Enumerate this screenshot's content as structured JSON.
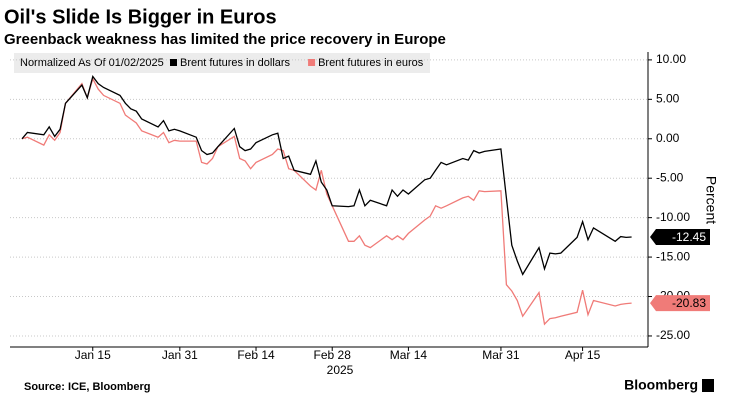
{
  "chart_data": {
    "type": "line",
    "title": "Oil's Slide Is Bigger in Euros",
    "subtitle": "Greenback weakness has limited the price recovery in Europe",
    "legend_title": "Normalized As Of 01/02/2025",
    "ylabel": "Percent",
    "xlabel": "2025",
    "source": "Source: ICE, Bloomberg",
    "brand": "Bloomberg",
    "x": [
      "2025-01-02",
      "2025-01-03",
      "2025-01-06",
      "2025-01-07",
      "2025-01-08",
      "2025-01-09",
      "2025-01-10",
      "2025-01-13",
      "2025-01-14",
      "2025-01-15",
      "2025-01-16",
      "2025-01-17",
      "2025-01-20",
      "2025-01-21",
      "2025-01-22",
      "2025-01-23",
      "2025-01-24",
      "2025-01-27",
      "2025-01-28",
      "2025-01-29",
      "2025-01-30",
      "2025-01-31",
      "2025-02-03",
      "2025-02-04",
      "2025-02-05",
      "2025-02-06",
      "2025-02-07",
      "2025-02-10",
      "2025-02-11",
      "2025-02-12",
      "2025-02-13",
      "2025-02-14",
      "2025-02-17",
      "2025-02-18",
      "2025-02-19",
      "2025-02-20",
      "2025-02-21",
      "2025-02-24",
      "2025-02-25",
      "2025-02-26",
      "2025-02-27",
      "2025-02-28",
      "2025-03-03",
      "2025-03-04",
      "2025-03-05",
      "2025-03-06",
      "2025-03-07",
      "2025-03-10",
      "2025-03-11",
      "2025-03-12",
      "2025-03-13",
      "2025-03-14",
      "2025-03-17",
      "2025-03-18",
      "2025-03-19",
      "2025-03-20",
      "2025-03-21",
      "2025-03-24",
      "2025-03-25",
      "2025-03-26",
      "2025-03-27",
      "2025-03-28",
      "2025-03-31",
      "2025-04-01",
      "2025-04-02",
      "2025-04-03",
      "2025-04-04",
      "2025-04-07",
      "2025-04-08",
      "2025-04-09",
      "2025-04-10",
      "2025-04-11",
      "2025-04-14",
      "2025-04-15",
      "2025-04-16",
      "2025-04-17",
      "2025-04-21",
      "2025-04-22",
      "2025-04-23",
      "2025-04-24"
    ],
    "series": [
      {
        "name": "Brent futures in dollars",
        "color": "#000000",
        "values": [
          0,
          0.8,
          0.5,
          1.5,
          0.3,
          1.2,
          4.5,
          6.8,
          5.2,
          7.9,
          7.0,
          6.5,
          5.5,
          4.5,
          3.8,
          3.5,
          2.5,
          1.5,
          2.3,
          1.0,
          1.2,
          1.0,
          0.2,
          -1.5,
          -2.0,
          -1.8,
          -1.0,
          1.3,
          -1.0,
          -1.5,
          -1.3,
          -0.5,
          0.5,
          0.7,
          -2.5,
          -2.2,
          -4.0,
          -4.5,
          -2.8,
          -5.5,
          -6.5,
          -8.5,
          -8.6,
          -8.5,
          -6.5,
          -8.5,
          -7.8,
          -8.5,
          -6.5,
          -7.3,
          -6.5,
          -7.0,
          -5.2,
          -5.0,
          -4.0,
          -3.0,
          -3.3,
          -2.5,
          -2.7,
          -1.5,
          -1.8,
          -1.6,
          -1.3,
          -7.5,
          -13.5,
          -15.5,
          -17.2,
          -13.8,
          -16.5,
          -14.5,
          -14.6,
          -14.5,
          -12.5,
          -10.5,
          -12.8,
          -11.3,
          -13.0,
          -12.4,
          -12.5,
          -12.45
        ]
      },
      {
        "name": "Brent futures in euros",
        "color": "#f07b78",
        "values": [
          0,
          0.2,
          -0.8,
          0.5,
          -0.2,
          0.8,
          4.5,
          7.0,
          5.2,
          7.6,
          6.3,
          5.5,
          4.5,
          3.0,
          2.5,
          2.0,
          1.0,
          0.2,
          0.8,
          -0.5,
          -0.2,
          -0.3,
          -0.3,
          -3.0,
          -3.2,
          -2.5,
          -1.0,
          0.3,
          -2.5,
          -2.8,
          -3.8,
          -3.0,
          -2.0,
          -1.3,
          -1.5,
          -3.8,
          -4.0,
          -6.0,
          -6.5,
          -4.0,
          -7.0,
          -8.5,
          -13.0,
          -13.0,
          -12.3,
          -13.5,
          -13.8,
          -12.3,
          -12.8,
          -12.3,
          -12.8,
          -12.0,
          -10.3,
          -9.8,
          -8.5,
          -8.8,
          -8.5,
          -7.5,
          -7.3,
          -7.8,
          -6.6,
          -6.7,
          -6.6,
          -18.5,
          -19.3,
          -20.5,
          -22.5,
          -19.5,
          -23.5,
          -22.8,
          -22.7,
          -22.5,
          -22.0,
          -19.2,
          -22.3,
          -20.5,
          -21.2,
          -21.0,
          -20.9,
          -20.83
        ]
      }
    ],
    "xlim": [
      "2025-01-02",
      "2025-04-25"
    ],
    "xticks": [
      {
        "value": "2025-01-15",
        "label": "Jan 15"
      },
      {
        "value": "2025-01-31",
        "label": "Jan 31"
      },
      {
        "value": "2025-02-14",
        "label": "Feb 14"
      },
      {
        "value": "2025-02-28",
        "label": "Feb 28"
      },
      {
        "value": "2025-03-14",
        "label": "Mar 14"
      },
      {
        "value": "2025-03-31",
        "label": "Mar 31"
      },
      {
        "value": "2025-04-15",
        "label": "Apr 15"
      }
    ],
    "ylim": [
      -26.4,
      11
    ],
    "yticks": [
      {
        "value": 10,
        "label": "10.00"
      },
      {
        "value": 5,
        "label": "5.00"
      },
      {
        "value": 0,
        "label": "0.00"
      },
      {
        "value": -5,
        "label": "-5.00"
      },
      {
        "value": -10,
        "label": "-10.00"
      },
      {
        "value": -15,
        "label": "-15.00"
      },
      {
        "value": -20,
        "label": "-20.00"
      },
      {
        "value": -25,
        "label": "-25.00"
      }
    ],
    "grid": true
  }
}
